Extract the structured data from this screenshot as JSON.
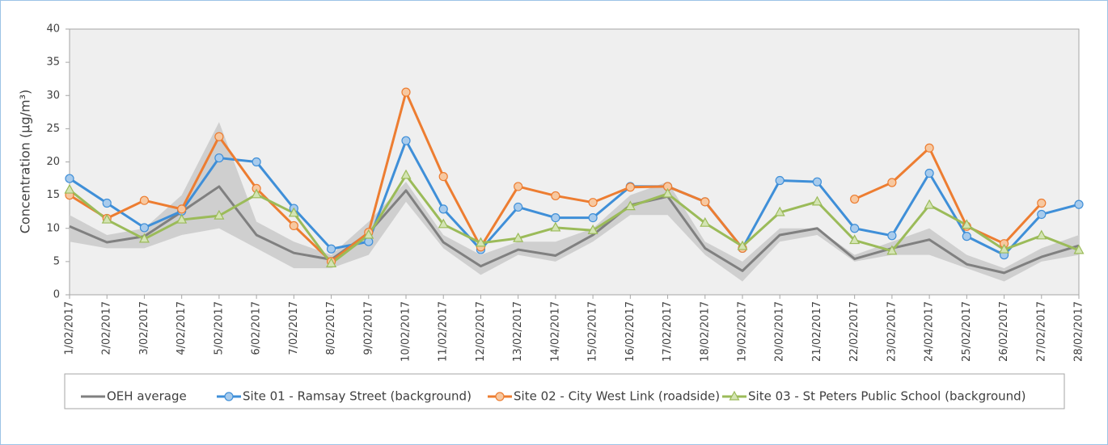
{
  "chart_data": {
    "type": "line",
    "y_label": "Concentration (µg/m³)",
    "categories": [
      "1/02/2017",
      "2/02/2017",
      "3/02/2017",
      "4/02/2017",
      "5/02/2017",
      "6/02/2017",
      "7/02/2017",
      "8/02/2017",
      "9/02/2017",
      "10/02/2017",
      "11/02/2017",
      "12/02/2017",
      "13/02/2017",
      "14/02/2017",
      "15/02/2017",
      "16/02/2017",
      "17/02/2017",
      "18/02/2017",
      "19/02/2017",
      "20/02/2017",
      "21/02/2017",
      "22/02/2017",
      "23/02/2017",
      "24/02/2017",
      "25/02/2017",
      "26/02/2017",
      "27/02/2017",
      "28/02/2017"
    ],
    "band": {
      "color": "#cfcfcf",
      "lower": [
        8,
        7,
        7,
        9,
        10,
        7,
        4,
        4,
        6,
        14,
        7,
        3,
        6,
        5,
        8,
        12,
        12,
        6,
        2,
        8,
        9,
        5,
        6,
        6,
        4,
        2,
        5,
        6
      ],
      "upper": [
        12,
        9,
        10,
        15,
        26,
        11,
        8,
        6,
        11,
        17,
        9,
        6,
        8,
        8,
        10,
        15,
        17,
        8,
        5,
        10,
        10,
        6,
        8,
        10,
        6,
        4,
        7,
        9
      ]
    },
    "series": [
      {
        "name": "OEH average",
        "color": "#808080",
        "marker": "none",
        "values": [
          10.3,
          7.9,
          8.8,
          12.5,
          16.3,
          9,
          6.3,
          5.3,
          9.3,
          15.7,
          7.9,
          4.3,
          6.8,
          5.9,
          9,
          13.5,
          14.8,
          7,
          3.6,
          9,
          10,
          5.4,
          7,
          8.3,
          4.6,
          3.3,
          5.7,
          7.4
        ]
      },
      {
        "name": "Site 01 - Ramsay Street (background)",
        "color": "#3f8fd8",
        "marker": "circle",
        "marker_fill": "#a8cbec",
        "values": [
          17.5,
          13.8,
          10.1,
          12.6,
          20.6,
          20,
          13,
          6.9,
          8,
          23.2,
          12.9,
          6.8,
          13.2,
          11.6,
          11.6,
          16.3,
          16.3,
          14,
          7,
          17.2,
          17,
          10,
          8.9,
          18.3,
          8.8,
          6,
          12.1,
          13.6
        ]
      },
      {
        "name": "Site 02 - City West Link (roadside)",
        "color": "#ed7d31",
        "marker": "circle",
        "marker_fill": "#f7c8a0",
        "values": [
          15,
          11.5,
          14.2,
          12.9,
          23.8,
          16,
          10.4,
          5,
          9.4,
          30.5,
          17.8,
          7.2,
          16.3,
          14.9,
          13.9,
          16.2,
          16.3,
          14,
          7,
          null,
          null,
          14.4,
          16.9,
          22.1,
          10.3,
          7.7,
          13.8,
          null
        ]
      },
      {
        "name": "Site 03 - St Peters Public School (background)",
        "color": "#9bbb59",
        "marker": "triangle",
        "marker_fill": "#d4e4b4",
        "values": [
          15.8,
          11.3,
          8.4,
          11.3,
          11.9,
          15.1,
          12.3,
          4.7,
          9,
          18,
          10.6,
          7.8,
          8.5,
          10.1,
          9.7,
          13.3,
          15.2,
          10.8,
          7.3,
          12.4,
          14,
          8.2,
          6.6,
          13.5,
          10.5,
          6.8,
          8.9,
          6.7
        ]
      }
    ],
    "ylim": [
      0,
      40
    ],
    "yticks": [
      0,
      5,
      10,
      15,
      20,
      25,
      30,
      35,
      40
    ],
    "grid": false,
    "plot_background": "#efefef"
  }
}
